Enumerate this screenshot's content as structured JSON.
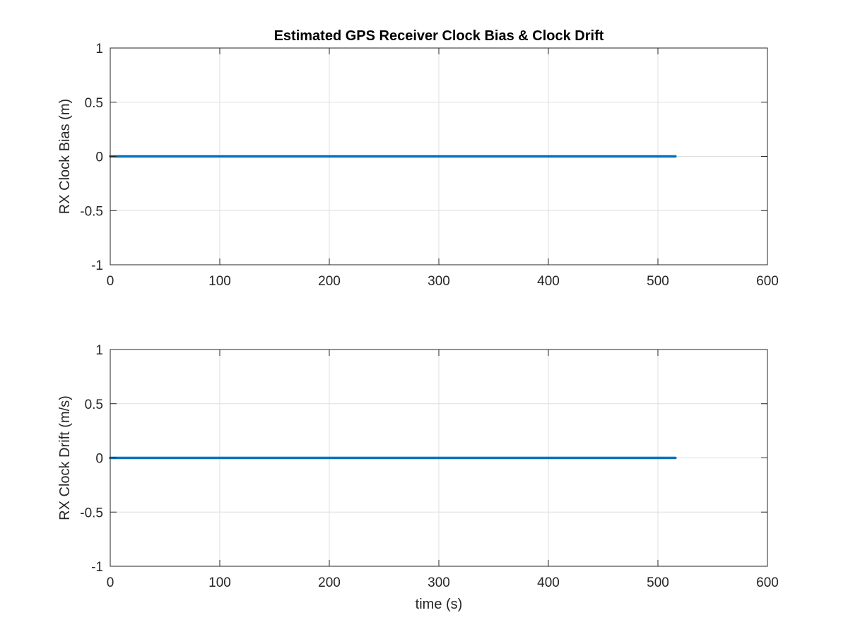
{
  "chart_data": [
    {
      "type": "line",
      "title": "Estimated GPS Receiver Clock Bias & Clock Drift",
      "xlabel": "",
      "ylabel": "RX Clock Bias (m)",
      "xlim": [
        0,
        600
      ],
      "ylim": [
        -1,
        1
      ],
      "xticks": [
        "0",
        "100",
        "200",
        "300",
        "400",
        "500",
        "600"
      ],
      "yticks": [
        "1",
        "0.5",
        "0",
        "-0.5",
        "-1"
      ],
      "grid": true,
      "series": [
        {
          "color": "#0072BD",
          "x": [
            0,
            516
          ],
          "y": [
            0,
            0
          ]
        }
      ]
    },
    {
      "type": "line",
      "title": "",
      "xlabel": "time (s)",
      "ylabel": "RX Clock Drift (m/s)",
      "xlim": [
        0,
        600
      ],
      "ylim": [
        -1,
        1
      ],
      "xticks": [
        "0",
        "100",
        "200",
        "300",
        "400",
        "500",
        "600"
      ],
      "yticks": [
        "1",
        "0.5",
        "0",
        "-0.5",
        "-1"
      ],
      "grid": true,
      "series": [
        {
          "color": "#0072BD",
          "x": [
            0,
            516
          ],
          "y": [
            0,
            0
          ]
        }
      ]
    }
  ]
}
